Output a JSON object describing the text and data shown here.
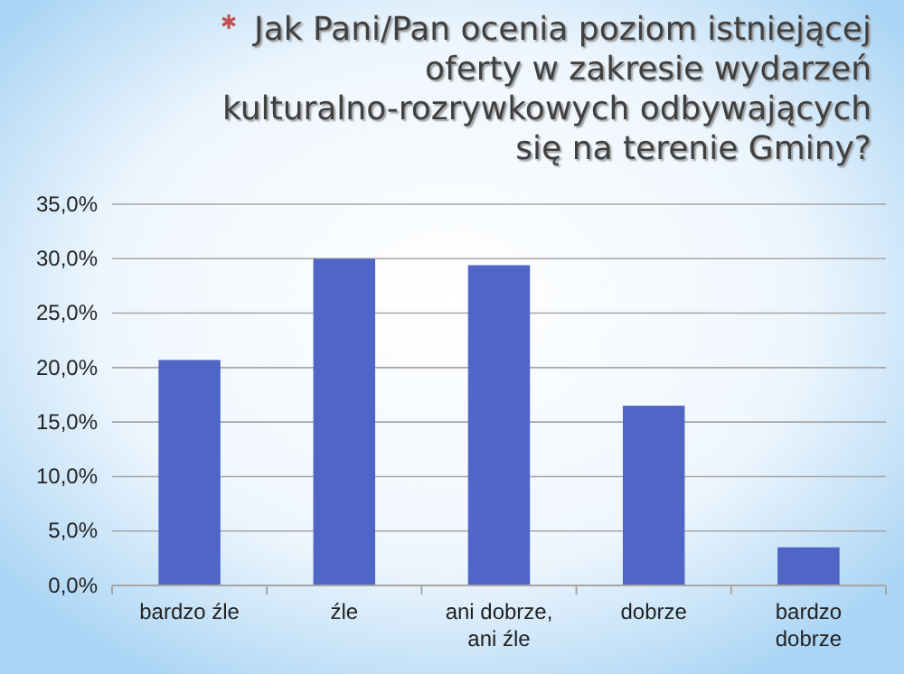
{
  "chart_data": {
    "type": "bar",
    "title": "Jak Pani/Pan ocenia poziom istniejącej oferty w zakresie wydarzeń kulturalno-rozrywkowych odbywających się na terenie Gminy?",
    "categories": [
      "bardzo źle",
      "źle",
      "ani dobrze, ani źle",
      "dobrze",
      "bardzo dobrze"
    ],
    "values": [
      20.7,
      30.0,
      29.4,
      16.5,
      3.5
    ],
    "color": "#4f66c6",
    "ylim": [
      0,
      35
    ],
    "yticks": [
      {
        "value": 0,
        "label": "0,0%"
      },
      {
        "value": 5,
        "label": "5,0%"
      },
      {
        "value": 10,
        "label": "10,0%"
      },
      {
        "value": 15,
        "label": "15,0%"
      },
      {
        "value": 20,
        "label": "20,0%"
      },
      {
        "value": 25,
        "label": "25,0%"
      },
      {
        "value": 30,
        "label": "30,0%"
      },
      {
        "value": 35,
        "label": "35,0%"
      }
    ],
    "grid": "y"
  }
}
